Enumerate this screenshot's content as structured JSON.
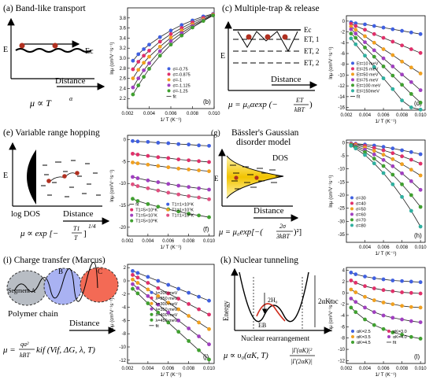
{
  "panels": {
    "a": {
      "title": "(a) Band-like transport",
      "level": "Ec",
      "yaxis": "E",
      "xaxis": "Distance",
      "formula": "μ ∝ T",
      "exp": "α"
    },
    "c": {
      "title": "(c) Multiple-trap & release",
      "levels": [
        "Ec",
        "ET, 1",
        "ET, 2",
        "ET, 3"
      ],
      "yaxis": "E",
      "xaxis": "Distance",
      "formula": "μ = μ₀αexp (−",
      "frac_num": "ET",
      "frac_den": "kBT",
      "formula_end": ")"
    },
    "e": {
      "title": "(e) Variable range hopping",
      "yaxis": "E",
      "xaxis": "log DOS",
      "xaxis2": "Distance",
      "formula": "μ ∝ exp [−",
      "frac_num": "T1",
      "frac_den": "T",
      "exp": "1/4",
      "formula_end": "]"
    },
    "g": {
      "title": "Bässler's Gaussian",
      "title2": "disorder model",
      "label_dos": "DOS",
      "yaxis": "E",
      "xaxis": "Distance",
      "formula": "μ = μ₀exp[−(",
      "frac_num": "2σ",
      "frac_den": "3kBT",
      "formula_end": ")²]",
      "tag": "(g)"
    },
    "i": {
      "title": "(i) Charge transfer (Marcus)",
      "segA": "Segment A",
      "segB": "B",
      "segC": "C",
      "chain": "Polymer chain",
      "xaxis": "Distance",
      "formula_lhs": "μ =",
      "frac_num": "qa²",
      "frac_den": "kBT",
      "formula_rhs": "kif (Vif, ΔG, λ, T)"
    },
    "k": {
      "title": "(k) Nuclear tunneling",
      "yaxis": "Energy",
      "xaxis": "Nuclear rearrangement",
      "label_2h": "2H₀",
      "label_eb": "EB",
      "label_2a": "2αKωc",
      "formula": "μ ∝ υ₀(αK, T)",
      "frac_num": "|Γ(αK)|²",
      "frac_den": "|Γ(2αK)|"
    }
  },
  "chart_data": [
    {
      "tag": "(b)",
      "type": "scatter",
      "xlabel": "1/ T (K⁻¹)",
      "ylabel": "lnμ (cm²V⁻¹s⁻¹)",
      "xlim": [
        0.002,
        0.01
      ],
      "ylim": [
        2.0,
        4.0
      ],
      "xticks": [
        "0.002",
        "0.004",
        "0.006",
        "0.008",
        "0.010"
      ],
      "yticks": [
        "2.2",
        "2.4",
        "2.6",
        "2.8",
        "3.0",
        "3.2",
        "3.4",
        "3.6",
        "3.8"
      ],
      "legend": [
        "σ=-0.75",
        "σ=-0.875",
        "σ=-1",
        "σ=-1.125",
        "σ=-1.25",
        "fit"
      ],
      "x": [
        0.0025,
        0.003,
        0.0035,
        0.004,
        0.005,
        0.006,
        0.007,
        0.008,
        0.009,
        0.0099
      ],
      "series": [
        {
          "color": "#4060e0",
          "values": [
            2.95,
            3.08,
            3.18,
            3.27,
            3.42,
            3.55,
            3.66,
            3.75,
            3.83,
            3.88
          ]
        },
        {
          "color": "#e0306a",
          "values": [
            2.78,
            2.93,
            3.05,
            3.15,
            3.33,
            3.48,
            3.6,
            3.71,
            3.8,
            3.87
          ]
        },
        {
          "color": "#f0a020",
          "values": [
            2.6,
            2.77,
            2.91,
            3.03,
            3.23,
            3.41,
            3.55,
            3.67,
            3.77,
            3.86
          ]
        },
        {
          "color": "#a040c0",
          "values": [
            2.42,
            2.6,
            2.76,
            2.9,
            3.14,
            3.34,
            3.5,
            3.64,
            3.75,
            3.85
          ]
        },
        {
          "color": "#40a030",
          "values": [
            2.28,
            2.46,
            2.63,
            2.79,
            3.05,
            3.27,
            3.45,
            3.61,
            3.74,
            3.85
          ]
        }
      ]
    },
    {
      "tag": "(d)",
      "type": "scatter",
      "xlabel": "1/ T (K⁻¹)",
      "ylabel": "lnμ (cm²V⁻¹s⁻¹)",
      "xlim": [
        0.002,
        0.0105
      ],
      "ylim": [
        -16.5,
        1
      ],
      "xticks": [
        "0.002",
        "0.004",
        "0.006",
        "0.008",
        "0.010"
      ],
      "yticks": [
        "0",
        "-2",
        "-4",
        "-6",
        "-8",
        "-10",
        "-12",
        "-14",
        "-16"
      ],
      "legend": [
        "Et=10 meV",
        "Et=25 meV",
        "Et=50 meV",
        "Et=75 meV",
        "Et=100 meV",
        "Et=150meV",
        "fit"
      ],
      "x": [
        0.0025,
        0.003,
        0.004,
        0.005,
        0.006,
        0.007,
        0.008,
        0.009,
        0.01
      ],
      "series": [
        {
          "color": "#4060e0",
          "values": [
            -0.2,
            -0.4,
            -0.6,
            -0.9,
            -1.2,
            -1.5,
            -1.8,
            -2.1,
            -2.4
          ]
        },
        {
          "color": "#e0306a",
          "values": [
            -0.5,
            -0.9,
            -1.6,
            -2.4,
            -3.1,
            -3.8,
            -4.5,
            -5.2,
            -5.9
          ]
        },
        {
          "color": "#f0a020",
          "values": [
            -1.0,
            -1.6,
            -2.8,
            -4.0,
            -5.2,
            -6.3,
            -7.5,
            -8.6,
            -9.7
          ]
        },
        {
          "color": "#a040c0",
          "values": [
            -1.5,
            -2.3,
            -3.9,
            -5.4,
            -6.9,
            -8.4,
            -9.9,
            -11.3,
            -12.8
          ]
        },
        {
          "color": "#40a030",
          "values": [
            -2.3,
            -3.1,
            -4.9,
            -6.6,
            -8.4,
            -10.1,
            -11.8,
            -13.5,
            -15.1
          ]
        },
        {
          "color": "#30b0a0",
          "values": [
            -3.2,
            -4.3,
            -6.4,
            -8.5,
            -10.6,
            -12.6,
            -14.7,
            -16.0,
            -16.4
          ]
        }
      ]
    },
    {
      "tag": "(f)",
      "type": "scatter",
      "xlabel": "1/ T (K⁻¹)",
      "ylabel": "lnμ (cm²V⁻¹s⁻¹)",
      "xlim": [
        0.002,
        0.0105
      ],
      "ylim": [
        -22,
        1
      ],
      "xticks": [
        "0.002",
        "0.004",
        "0.006",
        "0.008",
        "0.010"
      ],
      "yticks": [
        "0",
        "-5",
        "-10",
        "-15",
        "-20"
      ],
      "legend": [
        "fit",
        "T1=1×10⁶K",
        "T1=5×10⁶K",
        "T1=1×10⁷K",
        "T1=5×10⁷K",
        "T1=1×10⁸K",
        "T1=5×10⁸K"
      ],
      "x": [
        0.0025,
        0.003,
        0.004,
        0.005,
        0.006,
        0.007,
        0.008,
        0.009,
        0.01
      ],
      "series": [
        {
          "color": "#4060e0",
          "values": [
            -0.3,
            -0.4,
            -0.5,
            -0.7,
            -0.8,
            -1.0,
            -1.1,
            -1.3,
            -1.4
          ]
        },
        {
          "color": "#e0306a",
          "values": [
            -3.2,
            -3.4,
            -3.7,
            -4.0,
            -4.2,
            -4.5,
            -4.7,
            -4.9,
            -5.1
          ]
        },
        {
          "color": "#f0a020",
          "values": [
            -5.2,
            -5.4,
            -5.7,
            -6.0,
            -6.3,
            -6.6,
            -6.8,
            -7.0,
            -7.2
          ]
        },
        {
          "color": "#a040c0",
          "values": [
            -8.5,
            -8.8,
            -9.3,
            -9.7,
            -10.1,
            -10.5,
            -10.8,
            -11.1,
            -11.4
          ]
        },
        {
          "color": "#e05080",
          "values": [
            -10.2,
            -10.6,
            -11.1,
            -11.6,
            -12.1,
            -12.5,
            -12.9,
            -13.2,
            -13.6
          ]
        },
        {
          "color": "#40a030",
          "values": [
            -13.5,
            -14.0,
            -14.7,
            -15.3,
            -15.9,
            -16.4,
            -16.9,
            -17.3,
            -17.7
          ]
        }
      ]
    },
    {
      "tag": "(h)",
      "type": "scatter",
      "xlabel": "1/ T (K⁻¹)",
      "ylabel": "lnμ (cm²V⁻¹s⁻¹)",
      "xlim": [
        0.002,
        0.0105
      ],
      "ylim": [
        -38,
        1
      ],
      "xticks": [
        "0.004",
        "0.006",
        "0.008",
        "0.010"
      ],
      "yticks": [
        "0",
        "-5",
        "-10",
        "-15",
        "-20",
        "-25",
        "-30",
        "-35"
      ],
      "legend": [
        "σ=30",
        "σ=40",
        "σ=50",
        "σ=60",
        "σ=70",
        "σ=80"
      ],
      "x": [
        0.0025,
        0.003,
        0.004,
        0.005,
        0.006,
        0.007,
        0.008,
        0.009,
        0.01
      ],
      "series": [
        {
          "color": "#4060e0",
          "values": [
            -0.2,
            -0.4,
            -0.7,
            -1.1,
            -1.6,
            -2.2,
            -2.9,
            -3.6,
            -4.4
          ]
        },
        {
          "color": "#e0306a",
          "values": [
            -0.4,
            -0.6,
            -1.2,
            -2.0,
            -2.9,
            -4.0,
            -5.2,
            -6.5,
            -8.0
          ]
        },
        {
          "color": "#f0a020",
          "values": [
            -0.5,
            -0.9,
            -1.9,
            -3.1,
            -4.6,
            -6.3,
            -8.2,
            -10.3,
            -12.5
          ]
        },
        {
          "color": "#a040c0",
          "values": [
            -0.7,
            -1.3,
            -2.7,
            -4.5,
            -6.6,
            -9.0,
            -11.7,
            -14.7,
            -18.0
          ]
        },
        {
          "color": "#40a030",
          "values": [
            -0.9,
            -1.7,
            -3.6,
            -6.1,
            -8.9,
            -12.2,
            -15.9,
            -20.0,
            -24.5
          ]
        },
        {
          "color": "#30b0a0",
          "values": [
            -1.2,
            -2.2,
            -4.7,
            -7.9,
            -11.6,
            -15.9,
            -20.7,
            -26.0,
            -32.0
          ]
        }
      ]
    },
    {
      "tag": "(j)",
      "type": "scatter",
      "xlabel": "1/ T (K⁻¹)",
      "ylabel": "lnμ (cm²V⁻¹s⁻¹)",
      "xlim": [
        0.002,
        0.0105
      ],
      "ylim": [
        -12.5,
        2.5
      ],
      "xticks": [
        "0.002",
        "0.004",
        "0.006",
        "0.008",
        "0.010"
      ],
      "yticks": [
        "2",
        "0",
        "-2",
        "-4",
        "-6",
        "-8",
        "-10",
        "-12"
      ],
      "legend": [
        "λ=200 meV",
        "λ=250 meV",
        "λ=300 meV",
        "λ=350 meV",
        "λ=400 meV",
        "λ=450 meV",
        "fit"
      ],
      "x": [
        0.0025,
        0.003,
        0.004,
        0.005,
        0.006,
        0.007,
        0.008,
        0.009,
        0.01
      ],
      "series": [
        {
          "color": "#4060e0",
          "values": [
            1.5,
            1.2,
            0.6,
            0.0,
            -0.6,
            -1.2,
            -1.8,
            -2.4,
            -3.0
          ]
        },
        {
          "color": "#e0306a",
          "values": [
            0.9,
            0.5,
            -0.3,
            -1.1,
            -1.9,
            -2.7,
            -3.5,
            -4.3,
            -5.1
          ]
        },
        {
          "color": "#f0a020",
          "values": [
            0.2,
            -0.3,
            -1.3,
            -2.3,
            -3.3,
            -4.3,
            -5.3,
            -6.3,
            -7.3
          ]
        },
        {
          "color": "#a040c0",
          "values": [
            -0.5,
            -1.1,
            -2.3,
            -3.6,
            -4.8,
            -6.0,
            -7.2,
            -8.4,
            -9.6
          ]
        },
        {
          "color": "#40a030",
          "values": [
            -1.2,
            -1.9,
            -3.4,
            -4.8,
            -6.3,
            -7.7,
            -9.1,
            -10.5,
            -11.9
          ]
        }
      ]
    },
    {
      "tag": "(l)",
      "type": "scatter",
      "xlabel": "1/ T (K⁻¹)",
      "ylabel": "lnμ (cm²V⁻¹s⁻¹)",
      "xlim": [
        0.002,
        0.0105
      ],
      "ylim": [
        -12.5,
        4.5
      ],
      "xticks": [
        "0.002",
        "0.004",
        "0.006",
        "0.008",
        "0.010"
      ],
      "yticks": [
        "4",
        "2",
        "0",
        "-2",
        "-4",
        "-6",
        "-8",
        "-10",
        "-12"
      ],
      "legend": [
        "αK=2.5",
        "αK=3.0",
        "αK=3.5",
        "αK=4.0",
        "αK=4.5",
        "fit"
      ],
      "x": [
        0.0025,
        0.003,
        0.004,
        0.005,
        0.006,
        0.007,
        0.008,
        0.009,
        0.01
      ],
      "series": [
        {
          "color": "#4060e0",
          "values": [
            3.6,
            3.3,
            2.9,
            2.6,
            2.4,
            2.2,
            2.1,
            2.0,
            1.9
          ]
        },
        {
          "color": "#e0306a",
          "values": [
            2.2,
            1.8,
            1.2,
            0.8,
            0.5,
            0.3,
            0.1,
            0.0,
            -0.1
          ]
        },
        {
          "color": "#f0a020",
          "values": [
            0.6,
            0.1,
            -0.7,
            -1.3,
            -1.7,
            -2.0,
            -2.3,
            -2.5,
            -2.6
          ]
        },
        {
          "color": "#a040c0",
          "values": [
            -1.0,
            -1.6,
            -2.6,
            -3.4,
            -4.0,
            -4.4,
            -4.7,
            -5.0,
            -5.2
          ]
        },
        {
          "color": "#40a030",
          "values": [
            -2.6,
            -3.4,
            -4.7,
            -5.7,
            -6.4,
            -7.0,
            -7.4,
            -7.8,
            -8.1
          ]
        }
      ]
    }
  ]
}
